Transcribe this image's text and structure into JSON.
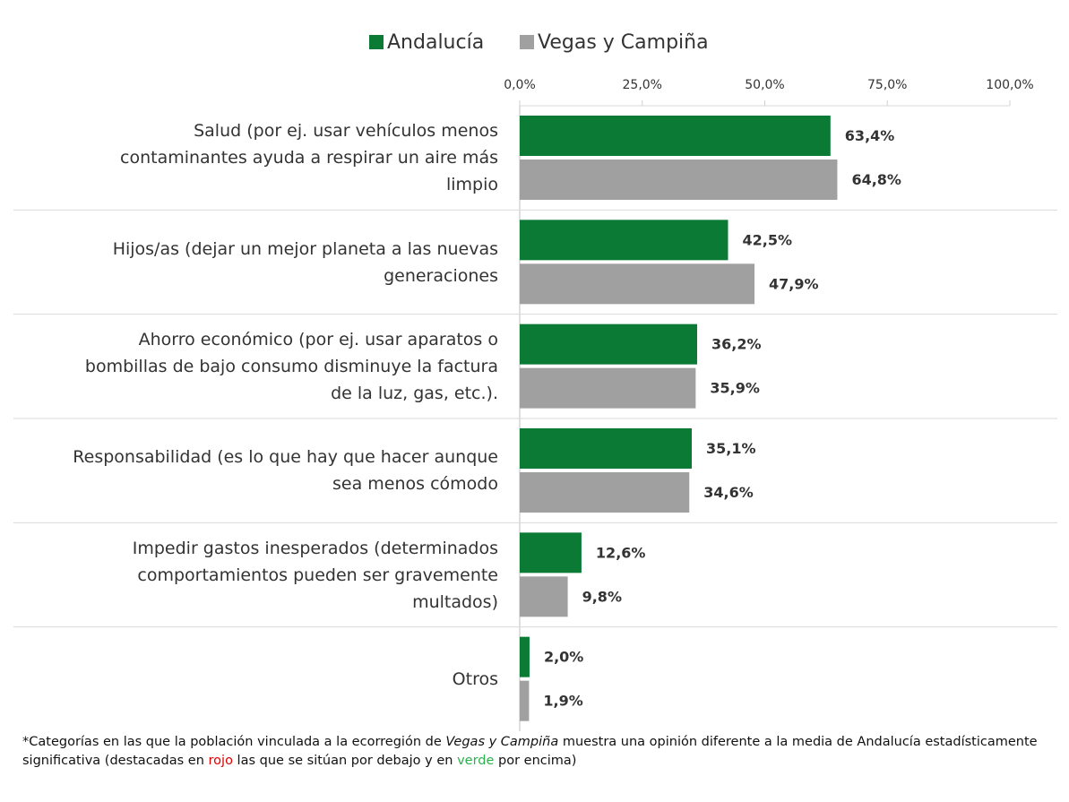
{
  "chart_data": {
    "type": "bar",
    "orientation": "horizontal",
    "categories": [
      "Salud (por ej. usar vehículos menos\ncontaminantes ayuda a respirar un aire más\nlimpio",
      "Hijos/as (dejar un mejor planeta a las nuevas\ngeneraciones",
      "Ahorro económico (por ej. usar aparatos o\nbombillas de bajo consumo disminuye la factura\nde la luz, gas, etc.).",
      "Responsabilidad (es lo que hay que hacer aunque\nsea menos cómodo",
      "Impedir gastos inesperados (determinados\ncomportamientos pueden ser gravemente\nmultados)",
      "Otros"
    ],
    "series": [
      {
        "name": "Andalucía",
        "color": "#0a7a34",
        "values": [
          63.4,
          42.5,
          36.2,
          35.1,
          12.6,
          2.0
        ],
        "value_labels": [
          "63,4%",
          "42,5%",
          "36,2%",
          "35,1%",
          "12,6%",
          "2,0%"
        ]
      },
      {
        "name": "Vegas y Campiña",
        "color": "#a0a0a0",
        "values": [
          64.8,
          47.9,
          35.9,
          34.6,
          9.8,
          1.9
        ],
        "value_labels": [
          "64,8%",
          "47,9%",
          "35,9%",
          "34,6%",
          "9,8%",
          "1,9%"
        ]
      }
    ],
    "highlights": [
      {
        "series": 1,
        "index": 1,
        "color": "#2bb24c"
      }
    ],
    "xlim": [
      0,
      100
    ],
    "xticks": [
      {
        "value": 0,
        "label": "0,0%"
      },
      {
        "value": 25,
        "label": "25,0%"
      },
      {
        "value": 50,
        "label": "50,0%"
      },
      {
        "value": 75,
        "label": "75,0%"
      },
      {
        "value": 100,
        "label": "100,0%"
      }
    ],
    "legend": "top",
    "footnote": [
      "*Categorías en las que la población vinculada a la ecorregión de ",
      "Vegas y Campiña",
      " muestra una opinión diferente a la media de Andalucía estadísticamente significativa (destacadas en ",
      "rojo",
      " las que se sitúan por debajo y en ",
      "verde",
      " por encima)"
    ]
  }
}
